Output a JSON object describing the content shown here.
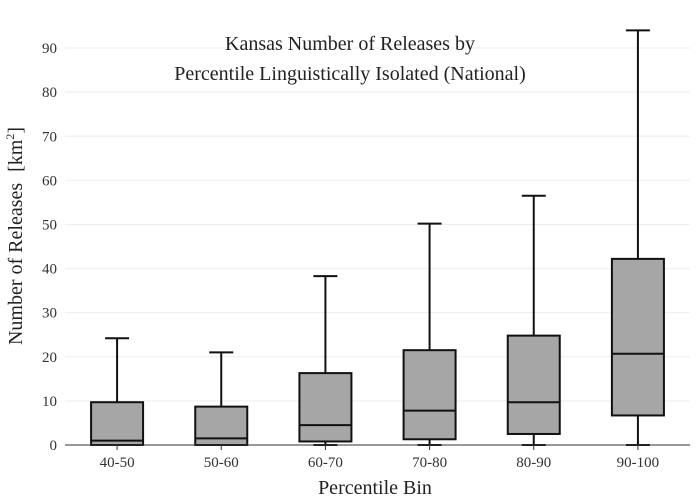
{
  "chart_data": {
    "type": "box",
    "title": [
      "Kansas Number of Releases by",
      "Percentile Linguistically Isolated (National)"
    ],
    "xlabel": "Percentile Bin",
    "ylabel": "Number of Releases",
    "ylabel_unit": "[km",
    "ylabel_unit_sup": "2",
    "ylabel_unit_close": "]",
    "ylim": [
      0,
      95
    ],
    "yticks": [
      0,
      10,
      20,
      30,
      40,
      50,
      60,
      70,
      80,
      90
    ],
    "grid": true,
    "box_color": "#a6a6a6",
    "categories": [
      "40-50",
      "50-60",
      "60-70",
      "70-80",
      "80-90",
      "90-100"
    ],
    "boxes": [
      {
        "whisker_low": 0,
        "q1": 0,
        "median": 1,
        "q3": 9.7,
        "whisker_high": 24.2
      },
      {
        "whisker_low": 0,
        "q1": 0,
        "median": 1.5,
        "q3": 8.7,
        "whisker_high": 21
      },
      {
        "whisker_low": 0,
        "q1": 0.8,
        "median": 4.5,
        "q3": 16.3,
        "whisker_high": 38.3
      },
      {
        "whisker_low": 0,
        "q1": 1.3,
        "median": 7.8,
        "q3": 21.5,
        "whisker_high": 50.2
      },
      {
        "whisker_low": 0,
        "q1": 2.5,
        "median": 9.7,
        "q3": 24.8,
        "whisker_high": 56.5
      },
      {
        "whisker_low": 0,
        "q1": 6.7,
        "median": 20.7,
        "q3": 42.2,
        "whisker_high": 94
      }
    ]
  }
}
